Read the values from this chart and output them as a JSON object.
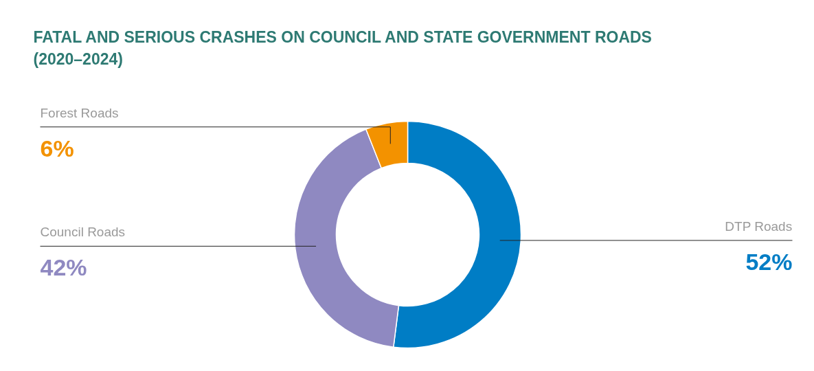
{
  "chart_data": {
    "type": "donut",
    "title": "FATAL AND SERIOUS CRASHES ON COUNCIL AND STATE GOVERNMENT ROADS (2020–2024)",
    "categories": [
      "DTP Roads",
      "Council Roads",
      "Forest Roads"
    ],
    "values": [
      52,
      42,
      6
    ],
    "colors": [
      "#007dc5",
      "#8f89c1",
      "#f39200"
    ],
    "value_labels": [
      "52%",
      "42%",
      "6%"
    ]
  }
}
